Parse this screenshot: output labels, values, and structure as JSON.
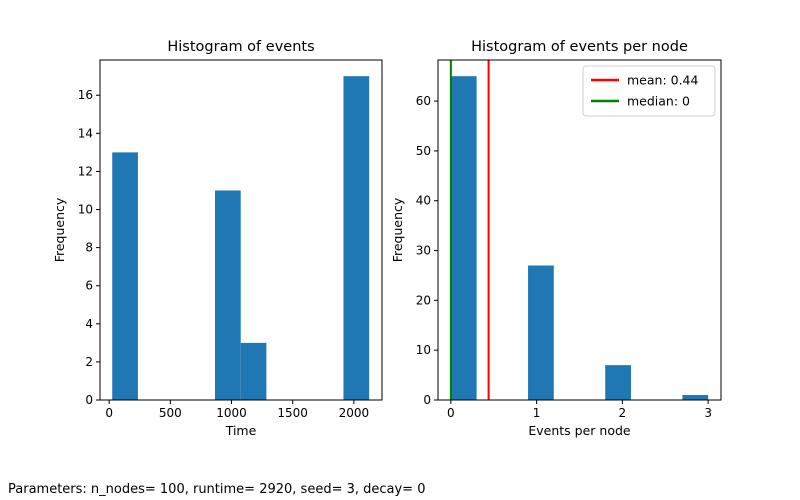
{
  "chart_data": [
    {
      "type": "bar",
      "title": "Histogram of events",
      "xlabel": "Time",
      "ylabel": "Frequency",
      "xlim": [
        -75,
        2230
      ],
      "ylim": [
        0,
        17.85
      ],
      "xticks": [
        0,
        500,
        1000,
        1500,
        2000
      ],
      "yticks": [
        0,
        2,
        4,
        6,
        8,
        10,
        12,
        14,
        16
      ],
      "bin_width": 210,
      "bins": [
        {
          "x0": 25,
          "value": 13
        },
        {
          "x0": 235,
          "value": 0
        },
        {
          "x0": 445,
          "value": 0
        },
        {
          "x0": 655,
          "value": 0
        },
        {
          "x0": 865,
          "value": 11
        },
        {
          "x0": 1075,
          "value": 3
        },
        {
          "x0": 1285,
          "value": 0
        },
        {
          "x0": 1495,
          "value": 0
        },
        {
          "x0": 1705,
          "value": 0
        },
        {
          "x0": 1915,
          "value": 17
        }
      ],
      "bar_color": "#1f77b4",
      "grid": false
    },
    {
      "type": "bar",
      "title": "Histogram of events per node",
      "xlabel": "Events per node",
      "ylabel": "Frequency",
      "xlim": [
        -0.15,
        3.15
      ],
      "ylim": [
        0,
        68.25
      ],
      "xticks": [
        0,
        1,
        2,
        3
      ],
      "yticks": [
        0,
        10,
        20,
        30,
        40,
        50,
        60
      ],
      "bin_width": 0.3,
      "bins": [
        {
          "x0": 0.0,
          "value": 65
        },
        {
          "x0": 0.3,
          "value": 0
        },
        {
          "x0": 0.6,
          "value": 0
        },
        {
          "x0": 0.9,
          "value": 27
        },
        {
          "x0": 1.2,
          "value": 0
        },
        {
          "x0": 1.5,
          "value": 0
        },
        {
          "x0": 1.8,
          "value": 7
        },
        {
          "x0": 2.1,
          "value": 0
        },
        {
          "x0": 2.4,
          "value": 0
        },
        {
          "x0": 2.7,
          "value": 1
        }
      ],
      "bar_color": "#1f77b4",
      "vlines": [
        {
          "label": "mean: 0.44",
          "x": 0.44,
          "color": "#ff0000"
        },
        {
          "label": "median: 0",
          "x": 0,
          "color": "#008000"
        }
      ],
      "legend_position": "top-right",
      "grid": false
    }
  ],
  "footnote": "Parameters: n_nodes= 100, runtime= 2920, seed= 3, decay= 0"
}
